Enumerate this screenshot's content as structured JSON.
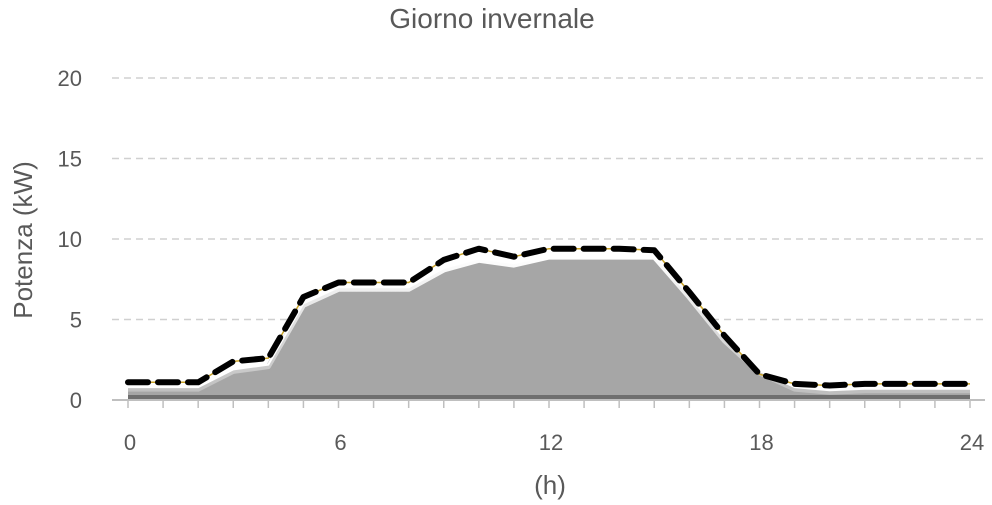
{
  "chart_data": {
    "type": "area",
    "title": "Giorno invernale",
    "xlabel": "(h)",
    "ylabel": "Potenza (kW)",
    "xlim": [
      0,
      24
    ],
    "ylim": [
      0,
      20
    ],
    "x_ticks": [
      0,
      6,
      12,
      18,
      24
    ],
    "y_ticks": [
      0,
      5,
      10,
      15,
      20
    ],
    "grid": "horizontal-dashed",
    "x": [
      0,
      1,
      2,
      3,
      4,
      5,
      6,
      7,
      8,
      9,
      10,
      11,
      12,
      13,
      14,
      15,
      16,
      17,
      18,
      19,
      20,
      21,
      22,
      23,
      24
    ],
    "series": [
      {
        "style": "gray-filled-area",
        "color": "#a6a6a6",
        "values": [
          0.8,
          0.8,
          0.8,
          1.9,
          2.2,
          6.0,
          7.0,
          7.0,
          7.0,
          8.2,
          8.8,
          8.5,
          9.0,
          9.0,
          9.0,
          9.0,
          6.5,
          3.8,
          1.8,
          0.8,
          0.6,
          0.7,
          0.7,
          0.7,
          0.7
        ]
      },
      {
        "style": "dashed-line",
        "color": "#000000",
        "values": [
          1.1,
          1.1,
          1.1,
          2.4,
          2.6,
          6.4,
          7.3,
          7.3,
          7.3,
          8.7,
          9.4,
          8.9,
          9.4,
          9.4,
          9.4,
          9.3,
          6.7,
          4.0,
          1.6,
          1.0,
          0.9,
          1.0,
          1.0,
          1.0,
          1.0
        ]
      }
    ]
  }
}
